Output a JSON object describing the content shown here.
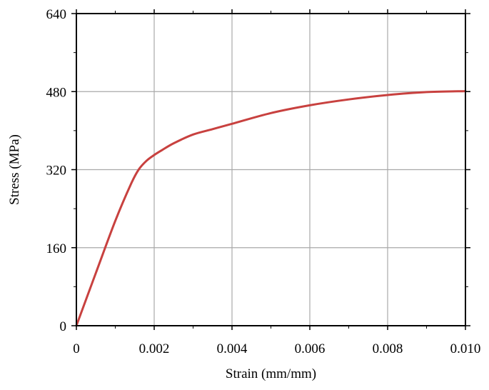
{
  "chart_data": {
    "type": "line",
    "title": "",
    "xlabel": "Strain (mm/mm)",
    "ylabel": "Stress (MPa)",
    "xlim": [
      0,
      0.01
    ],
    "ylim": [
      0,
      640
    ],
    "x_ticks": [
      "0",
      "0.002",
      "0.004",
      "0.006",
      "0.008",
      "0.010"
    ],
    "y_ticks": [
      "0",
      "160",
      "320",
      "480",
      "640"
    ],
    "grid": true,
    "legend": "none",
    "series": [
      {
        "color": "#c8413f",
        "x": [
          0,
          0.0005,
          0.001,
          0.0014,
          0.0016,
          0.0018,
          0.002,
          0.0022,
          0.0025,
          0.003,
          0.0035,
          0.004,
          0.005,
          0.006,
          0.007,
          0.008,
          0.009,
          0.01
        ],
        "y": [
          0,
          108,
          215,
          290,
          320,
          338,
          350,
          360,
          374,
          392,
          403,
          414,
          436,
          452,
          464,
          473,
          479,
          481
        ]
      }
    ]
  }
}
